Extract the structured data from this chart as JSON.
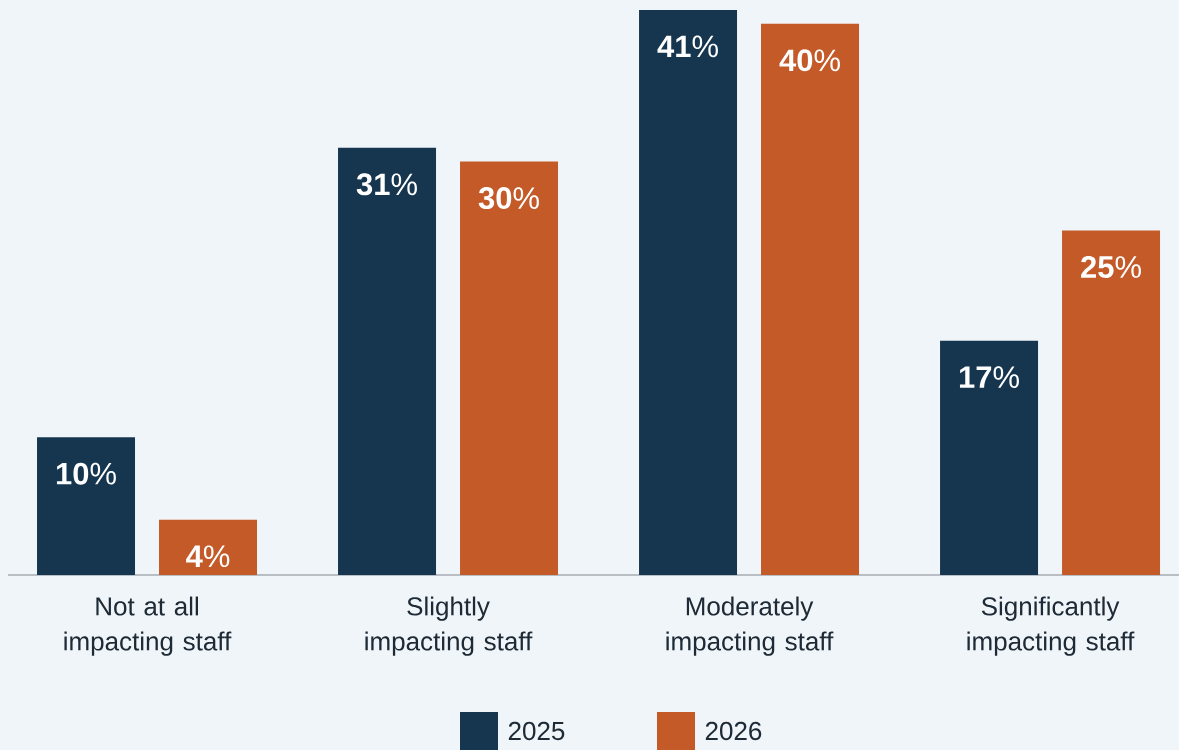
{
  "chart_data": {
    "type": "bar",
    "categories": [
      "Not at all impacting staff",
      "Slightly impacting staff",
      "Moderately impacting staff",
      "Significantly impacting staff"
    ],
    "series": [
      {
        "name": "2025",
        "color": "#163650",
        "values": [
          10,
          31,
          41,
          17
        ],
        "value_labels": [
          "**10**%",
          "**31**%",
          "**41**%",
          "**17**%"
        ]
      },
      {
        "name": "2026",
        "color": "#c35a28",
        "values": [
          4,
          30,
          40,
          25
        ],
        "value_labels": [
          "**4**%",
          "**30**%",
          "**40**%",
          "**25**%"
        ]
      }
    ],
    "ylim": [
      0,
      41
    ],
    "legend": "bottom"
  }
}
